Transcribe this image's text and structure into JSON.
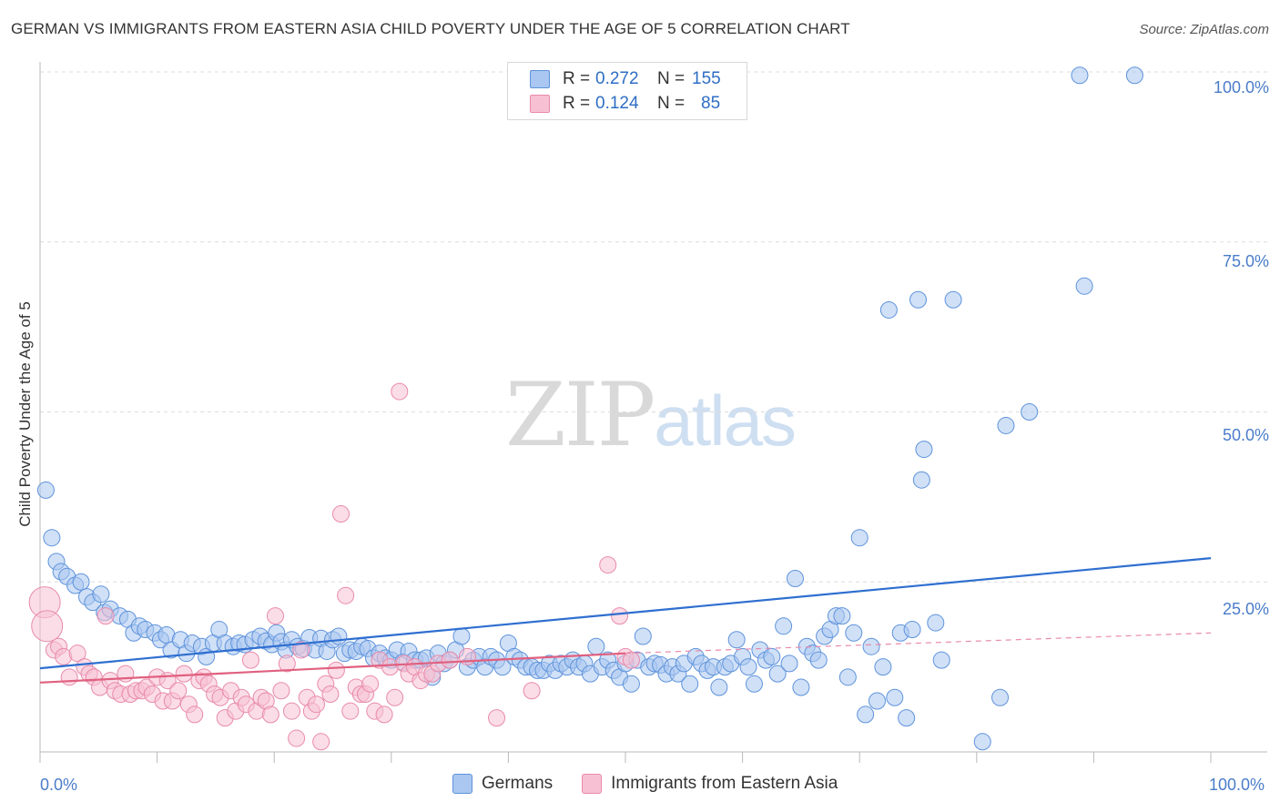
{
  "title": "GERMAN VS IMMIGRANTS FROM EASTERN ASIA CHILD POVERTY UNDER THE AGE OF 5 CORRELATION CHART",
  "source": "Source: ZipAtlas.com",
  "watermark": {
    "zip": "ZIP",
    "atlas": "atlas"
  },
  "legend": {
    "germans": {
      "r_label": "R =",
      "r_value": "0.272",
      "n_label": "N =",
      "n_value": "155",
      "color": "#a9c7f0",
      "stroke": "#5e93db"
    },
    "immigrants": {
      "r_label": "R =",
      "r_value": "0.124",
      "n_label": "N =",
      "n_value": "85",
      "color": "#f7c1d3",
      "stroke": "#e88aab"
    }
  },
  "bottom_legend": {
    "germans": "Germans",
    "immigrants": "Immigrants from Eastern Asia"
  },
  "chart_data": {
    "type": "scatter",
    "title": "GERMAN VS IMMIGRANTS FROM EASTERN ASIA CHILD POVERTY UNDER THE AGE OF 5 CORRELATION CHART",
    "xlabel": "",
    "ylabel": "Child Poverty Under the Age of 5",
    "xlim": [
      0,
      100
    ],
    "ylim": [
      0,
      100
    ],
    "x_tick_labels": [
      "0.0%",
      "100.0%"
    ],
    "y_tick_labels": [
      "100.0%",
      "75.0%",
      "50.0%",
      "25.0%"
    ],
    "y_ticks": [
      100,
      75,
      50,
      25
    ],
    "series": [
      {
        "name": "Germans",
        "color": "#a9c7f0",
        "stroke": "#5e93db",
        "trend": {
          "x": [
            0,
            100
          ],
          "y": [
            12.3,
            28.5
          ],
          "color": "#2f6fd0",
          "dashed": false
        },
        "points": [
          [
            0.5,
            38.5
          ],
          [
            1,
            31.5
          ],
          [
            1.4,
            28
          ],
          [
            1.8,
            26.5
          ],
          [
            2.3,
            25.8
          ],
          [
            3,
            24.5
          ],
          [
            3.5,
            25
          ],
          [
            4,
            22.8
          ],
          [
            4.5,
            22
          ],
          [
            5.2,
            23.2
          ],
          [
            5.5,
            20.5
          ],
          [
            6,
            21
          ],
          [
            6.8,
            20
          ],
          [
            7.5,
            19.5
          ],
          [
            8,
            17.5
          ],
          [
            8.5,
            18.5
          ],
          [
            9,
            18
          ],
          [
            9.8,
            17.5
          ],
          [
            10.3,
            16.5
          ],
          [
            10.8,
            17.2
          ],
          [
            11.2,
            15
          ],
          [
            12,
            16.5
          ],
          [
            12.5,
            14.5
          ],
          [
            13,
            16
          ],
          [
            13.8,
            15.5
          ],
          [
            14.2,
            14
          ],
          [
            14.8,
            16
          ],
          [
            15.3,
            18
          ],
          [
            15.8,
            16
          ],
          [
            16.5,
            15.5
          ],
          [
            17,
            16
          ],
          [
            17.5,
            15.8
          ],
          [
            18.2,
            16.5
          ],
          [
            18.8,
            17
          ],
          [
            19.3,
            16.3
          ],
          [
            19.8,
            15.8
          ],
          [
            20.2,
            17.5
          ],
          [
            20.6,
            16.2
          ],
          [
            21,
            15
          ],
          [
            21.5,
            16.5
          ],
          [
            22,
            15.5
          ],
          [
            22.5,
            15.2
          ],
          [
            23,
            16.8
          ],
          [
            23.5,
            15
          ],
          [
            24,
            16.7
          ],
          [
            24.5,
            14.8
          ],
          [
            25,
            16.5
          ],
          [
            25.5,
            17
          ],
          [
            26,
            14.5
          ],
          [
            26.5,
            15
          ],
          [
            27,
            14.8
          ],
          [
            27.5,
            15.5
          ],
          [
            28,
            15.2
          ],
          [
            28.5,
            13.8
          ],
          [
            29,
            14.5
          ],
          [
            29.5,
            13.8
          ],
          [
            30,
            13.5
          ],
          [
            30.5,
            15
          ],
          [
            31,
            13.2
          ],
          [
            31.5,
            14.8
          ],
          [
            32,
            13.5
          ],
          [
            32.5,
            13.5
          ],
          [
            33,
            13.8
          ],
          [
            33.5,
            11
          ],
          [
            34,
            14.5
          ],
          [
            34.5,
            13
          ],
          [
            35,
            13.5
          ],
          [
            35.5,
            15
          ],
          [
            36,
            17
          ],
          [
            36.5,
            12.5
          ],
          [
            37,
            13.5
          ],
          [
            37.5,
            14
          ],
          [
            38,
            12.5
          ],
          [
            38.5,
            14
          ],
          [
            39,
            13.5
          ],
          [
            39.5,
            12.5
          ],
          [
            40,
            16
          ],
          [
            40.5,
            14
          ],
          [
            41,
            13.5
          ],
          [
            41.5,
            12.5
          ],
          [
            42,
            12.5
          ],
          [
            42.5,
            12
          ],
          [
            43,
            12
          ],
          [
            43.5,
            13
          ],
          [
            44,
            12
          ],
          [
            44.5,
            13
          ],
          [
            45,
            12.5
          ],
          [
            45.5,
            13.5
          ],
          [
            46,
            12.5
          ],
          [
            46.5,
            13
          ],
          [
            47,
            11.5
          ],
          [
            47.5,
            15.5
          ],
          [
            48,
            12.5
          ],
          [
            48.5,
            13.5
          ],
          [
            49,
            12
          ],
          [
            49.5,
            11
          ],
          [
            50,
            13
          ],
          [
            50.5,
            10
          ],
          [
            51,
            13.5
          ],
          [
            51.5,
            17
          ],
          [
            52,
            12.5
          ],
          [
            52.5,
            13
          ],
          [
            53,
            12.8
          ],
          [
            53.5,
            11.5
          ],
          [
            54,
            12.5
          ],
          [
            54.5,
            11.5
          ],
          [
            55,
            13
          ],
          [
            55.5,
            10
          ],
          [
            56,
            14
          ],
          [
            56.5,
            13
          ],
          [
            57,
            12
          ],
          [
            57.5,
            12.5
          ],
          [
            58,
            9.5
          ],
          [
            58.5,
            12.5
          ],
          [
            59,
            13
          ],
          [
            59.5,
            16.5
          ],
          [
            60,
            14
          ],
          [
            60.5,
            12.5
          ],
          [
            61,
            10
          ],
          [
            61.5,
            15
          ],
          [
            62,
            13.5
          ],
          [
            62.5,
            14
          ],
          [
            63,
            11.5
          ],
          [
            63.5,
            18.5
          ],
          [
            64,
            13
          ],
          [
            64.5,
            25.5
          ],
          [
            65,
            9.5
          ],
          [
            65.5,
            15.5
          ],
          [
            66,
            14.5
          ],
          [
            66.5,
            13.5
          ],
          [
            67,
            17
          ],
          [
            67.5,
            18
          ],
          [
            68,
            20
          ],
          [
            68.5,
            20
          ],
          [
            69,
            11
          ],
          [
            69.5,
            17.5
          ],
          [
            70,
            31.5
          ],
          [
            70.5,
            5.5
          ],
          [
            71,
            15.5
          ],
          [
            71.5,
            7.5
          ],
          [
            72,
            12.5
          ],
          [
            72.5,
            65
          ],
          [
            73,
            8
          ],
          [
            73.5,
            17.5
          ],
          [
            74,
            5
          ],
          [
            74.5,
            18
          ],
          [
            75,
            66.5
          ],
          [
            75.5,
            44.5
          ],
          [
            75.3,
            40
          ],
          [
            76.5,
            19
          ],
          [
            77,
            13.5
          ],
          [
            78,
            66.5
          ],
          [
            80.5,
            1.5
          ],
          [
            82,
            8
          ],
          [
            82.5,
            48
          ],
          [
            84.5,
            50
          ],
          [
            88.8,
            99.5
          ],
          [
            89.2,
            68.5
          ],
          [
            93.5,
            99.5
          ]
        ]
      },
      {
        "name": "Immigrants from Eastern Asia",
        "color": "#f7c1d3",
        "stroke": "#e88aab",
        "trend": {
          "x": [
            0,
            50
          ],
          "y": [
            10.2,
            14.5
          ],
          "color": "#e0607f",
          "dashed": false
        },
        "trend_ext": {
          "x": [
            50,
            100
          ],
          "y": [
            14.5,
            17.5
          ],
          "color": "#e88aab",
          "dashed": true
        },
        "points": [
          [
            0.4,
            22
          ],
          [
            0.6,
            18.5
          ],
          [
            1.2,
            15
          ],
          [
            1.6,
            15.5
          ],
          [
            2,
            14
          ],
          [
            2.5,
            11
          ],
          [
            3.2,
            14.5
          ],
          [
            3.8,
            12.5
          ],
          [
            4.2,
            11.5
          ],
          [
            4.6,
            11
          ],
          [
            5.1,
            9.5
          ],
          [
            5.6,
            20
          ],
          [
            6,
            10.5
          ],
          [
            6.4,
            9
          ],
          [
            6.9,
            8.5
          ],
          [
            7.3,
            11.5
          ],
          [
            7.7,
            8.5
          ],
          [
            8.2,
            9
          ],
          [
            8.7,
            9
          ],
          [
            9.1,
            9.5
          ],
          [
            9.6,
            8.5
          ],
          [
            10,
            11
          ],
          [
            10.5,
            7.5
          ],
          [
            10.9,
            10.5
          ],
          [
            11.3,
            7.5
          ],
          [
            11.8,
            9
          ],
          [
            12.3,
            11.5
          ],
          [
            12.7,
            7
          ],
          [
            13.2,
            5.5
          ],
          [
            13.6,
            10.5
          ],
          [
            14,
            11
          ],
          [
            14.4,
            10
          ],
          [
            14.9,
            8.5
          ],
          [
            15.4,
            8
          ],
          [
            15.8,
            5
          ],
          [
            16.3,
            9
          ],
          [
            16.7,
            6
          ],
          [
            17.2,
            8
          ],
          [
            17.6,
            7
          ],
          [
            18,
            13.5
          ],
          [
            18.5,
            6
          ],
          [
            18.9,
            8
          ],
          [
            19.3,
            7.5
          ],
          [
            19.7,
            5.5
          ],
          [
            20.1,
            20
          ],
          [
            20.6,
            9
          ],
          [
            21.1,
            13
          ],
          [
            21.5,
            6
          ],
          [
            21.9,
            2
          ],
          [
            22.3,
            15
          ],
          [
            22.8,
            8
          ],
          [
            23.2,
            6
          ],
          [
            23.6,
            7
          ],
          [
            24,
            1.5
          ],
          [
            24.4,
            10
          ],
          [
            24.8,
            8.5
          ],
          [
            25.3,
            12
          ],
          [
            25.7,
            35
          ],
          [
            26.1,
            23
          ],
          [
            26.5,
            6
          ],
          [
            27,
            9.5
          ],
          [
            27.4,
            8.5
          ],
          [
            27.8,
            8.5
          ],
          [
            28.2,
            10
          ],
          [
            28.6,
            6
          ],
          [
            29,
            13.5
          ],
          [
            29.4,
            5.5
          ],
          [
            29.9,
            12.5
          ],
          [
            30.3,
            8
          ],
          [
            30.7,
            53
          ],
          [
            31.1,
            13
          ],
          [
            31.5,
            11.5
          ],
          [
            32,
            12.5
          ],
          [
            32.5,
            10.5
          ],
          [
            33,
            11.5
          ],
          [
            33.5,
            11.5
          ],
          [
            34,
            13
          ],
          [
            35,
            13.5
          ],
          [
            36.5,
            14
          ],
          [
            39,
            5
          ],
          [
            42,
            9
          ],
          [
            48.5,
            27.5
          ],
          [
            49.5,
            20
          ],
          [
            50,
            14
          ],
          [
            50.5,
            13.5
          ]
        ]
      }
    ]
  }
}
